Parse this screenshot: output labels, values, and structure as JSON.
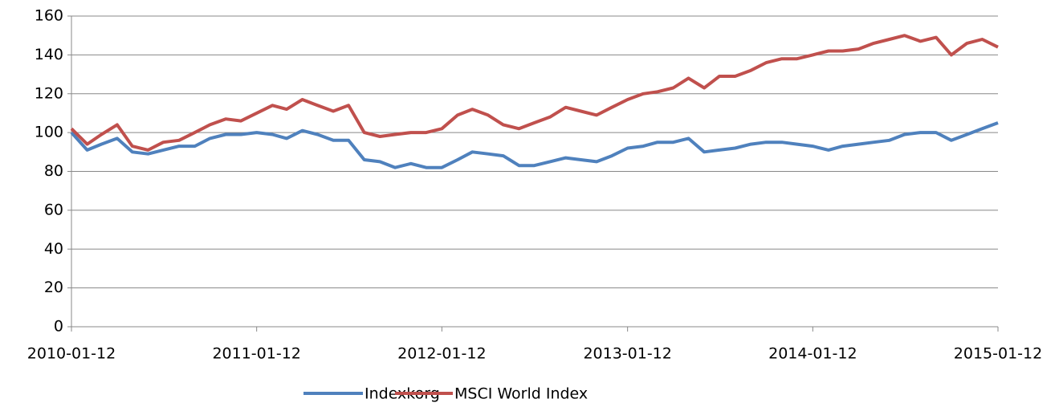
{
  "chart_data": {
    "type": "line",
    "x": [
      "2010-01-12",
      "2010-02-12",
      "2010-03-12",
      "2010-04-12",
      "2010-05-12",
      "2010-06-12",
      "2010-07-12",
      "2010-08-12",
      "2010-09-12",
      "2010-10-12",
      "2010-11-12",
      "2010-12-12",
      "2011-01-12",
      "2011-02-12",
      "2011-03-12",
      "2011-04-12",
      "2011-05-12",
      "2011-06-12",
      "2011-07-12",
      "2011-08-12",
      "2011-09-12",
      "2011-10-12",
      "2011-11-12",
      "2011-12-12",
      "2012-01-12",
      "2012-02-12",
      "2012-03-12",
      "2012-04-12",
      "2012-05-12",
      "2012-06-12",
      "2012-07-12",
      "2012-08-12",
      "2012-09-12",
      "2012-10-12",
      "2012-11-12",
      "2012-12-12",
      "2013-01-12",
      "2013-02-12",
      "2013-03-12",
      "2013-04-12",
      "2013-05-12",
      "2013-06-12",
      "2013-07-12",
      "2013-08-12",
      "2013-09-12",
      "2013-10-12",
      "2013-11-12",
      "2013-12-12",
      "2014-01-12",
      "2014-02-12",
      "2014-03-12",
      "2014-04-12",
      "2014-05-12",
      "2014-06-12",
      "2014-07-12",
      "2014-08-12",
      "2014-09-12",
      "2014-10-12",
      "2014-11-12",
      "2014-12-12",
      "2015-01-12"
    ],
    "series": [
      {
        "name": "Indexkorg",
        "color": "#4f81bd",
        "values": [
          100,
          91,
          94,
          97,
          90,
          89,
          91,
          93,
          93,
          97,
          99,
          99,
          100,
          99,
          97,
          101,
          99,
          96,
          96,
          86,
          85,
          82,
          84,
          82,
          82,
          86,
          90,
          89,
          88,
          83,
          83,
          85,
          87,
          86,
          85,
          88,
          92,
          93,
          95,
          95,
          97,
          90,
          91,
          92,
          94,
          95,
          95,
          94,
          93,
          91,
          93,
          94,
          95,
          96,
          99,
          100,
          100,
          96,
          99,
          102,
          105
        ]
      },
      {
        "name": "MSCI World Index",
        "color": "#c0504d",
        "values": [
          102,
          94,
          99,
          104,
          93,
          91,
          95,
          96,
          100,
          104,
          107,
          106,
          110,
          114,
          112,
          117,
          114,
          111,
          114,
          100,
          98,
          99,
          100,
          100,
          102,
          109,
          112,
          109,
          104,
          102,
          105,
          108,
          113,
          111,
          109,
          113,
          117,
          120,
          121,
          123,
          128,
          123,
          129,
          129,
          132,
          136,
          138,
          138,
          140,
          142,
          142,
          143,
          146,
          148,
          150,
          147,
          149,
          140,
          146,
          148,
          144
        ]
      }
    ],
    "xlim": [
      "2010-01-12",
      "2015-01-12"
    ],
    "xticks": [
      "2010-01-12",
      "2011-01-12",
      "2012-01-12",
      "2013-01-12",
      "2014-01-12",
      "2015-01-12"
    ],
    "ylim": [
      0,
      160
    ],
    "yticks": [
      0,
      20,
      40,
      60,
      80,
      100,
      120,
      140,
      160
    ],
    "grid": true,
    "legend": "bottom"
  }
}
